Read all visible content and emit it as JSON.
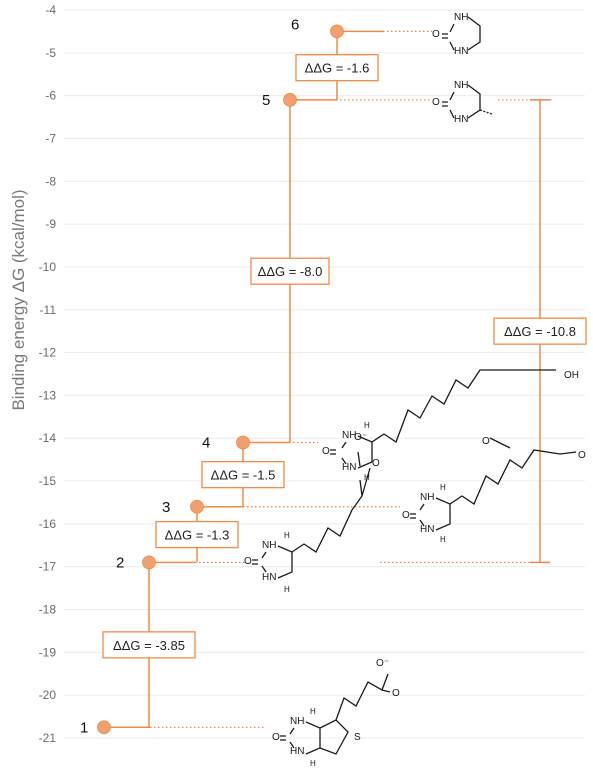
{
  "chart_data": {
    "type": "scatter",
    "title": "",
    "ylabel": "Binding energy ΔG (kcal/mol)",
    "ylim": [
      -21,
      -4
    ],
    "yticks": [
      -4,
      -5,
      -6,
      -7,
      -8,
      -9,
      -10,
      -11,
      -12,
      -13,
      -14,
      -15,
      -16,
      -17,
      -18,
      -19,
      -20,
      -21
    ],
    "grid": true,
    "point_color": "#f0a070",
    "line_color": "#f08c46",
    "points": [
      {
        "label": "1",
        "y": -20.75
      },
      {
        "label": "2",
        "y": -16.9
      },
      {
        "label": "3",
        "y": -15.6
      },
      {
        "label": "4",
        "y": -14.1
      },
      {
        "label": "5",
        "y": -6.1
      },
      {
        "label": "6",
        "y": -4.5
      }
    ],
    "annotations": [
      {
        "text": "ΔΔG = -3.85",
        "from": "1",
        "to": "2"
      },
      {
        "text": "ΔΔG = -1.3",
        "from": "2",
        "to": "3"
      },
      {
        "text": "ΔΔG = -1.5",
        "from": "3",
        "to": "4"
      },
      {
        "text": "ΔΔG = -8.0",
        "from": "4",
        "to": "5"
      },
      {
        "text": "ΔΔG = -1.6",
        "from": "5",
        "to": "6"
      },
      {
        "text": "ΔΔG = -10.8",
        "from": "2",
        "to": "5"
      }
    ],
    "structure_atoms": {
      "nh": "NH",
      "hn": "HN",
      "o": "O",
      "h": "H",
      "s": "S",
      "oh": "OH",
      "o_minus": "O⁻",
      "o_dbl": "O"
    }
  }
}
